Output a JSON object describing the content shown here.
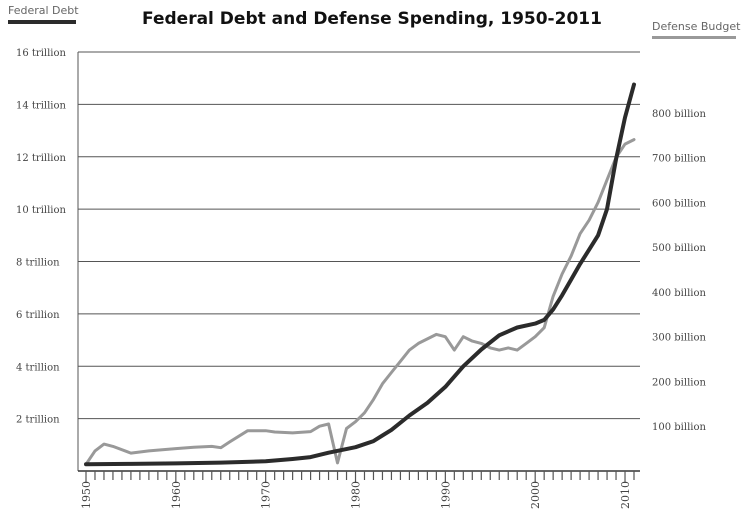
{
  "chart_data": {
    "type": "line",
    "title": "Federal Debt and Defense Spending, 1950-2011",
    "left_axis": {
      "label": "Federal Debt",
      "ylim": [
        0,
        16
      ],
      "ticks": [
        {
          "value": 2,
          "label": "2 trillion"
        },
        {
          "value": 4,
          "label": "4 trillion"
        },
        {
          "value": 6,
          "label": "6 trillion"
        },
        {
          "value": 8,
          "label": "8 trillion"
        },
        {
          "value": 10,
          "label": "10 trillion"
        },
        {
          "value": 12,
          "label": "12 trillion"
        },
        {
          "value": 14,
          "label": "14 trillion"
        },
        {
          "value": 16,
          "label": "16 trillion"
        }
      ]
    },
    "right_axis": {
      "label": "Defense Budget",
      "ylim": [
        0,
        900
      ],
      "ticks": [
        {
          "value": 100,
          "label": "100 billion"
        },
        {
          "value": 200,
          "label": "200 billion"
        },
        {
          "value": 300,
          "label": "300 billion"
        },
        {
          "value": 400,
          "label": "400 billion"
        },
        {
          "value": 500,
          "label": "500 billion"
        },
        {
          "value": 600,
          "label": "600 billion"
        },
        {
          "value": 700,
          "label": "700 billion"
        },
        {
          "value": 800,
          "label": "800 billion"
        }
      ]
    },
    "x_axis": {
      "range": [
        1950,
        2011
      ],
      "tick_labels": [
        "1950",
        "1960",
        "1970",
        "1980",
        "1990",
        "2000",
        "2010"
      ]
    },
    "grid": true,
    "series": [
      {
        "name": "Federal Debt",
        "axis": "left",
        "color": "#2b2b2b",
        "x": [
          1950,
          1955,
          1960,
          1965,
          1970,
          1973,
          1975,
          1977,
          1980,
          1982,
          1984,
          1986,
          1988,
          1990,
          1992,
          1994,
          1996,
          1998,
          2000,
          2001,
          2002,
          2003,
          2004,
          2005,
          2006,
          2007,
          2008,
          2009,
          2010,
          2011
        ],
        "values": [
          0.26,
          0.27,
          0.29,
          0.32,
          0.37,
          0.46,
          0.53,
          0.7,
          0.91,
          1.14,
          1.57,
          2.12,
          2.6,
          3.21,
          4.0,
          4.64,
          5.18,
          5.48,
          5.63,
          5.77,
          6.17,
          6.71,
          7.31,
          7.91,
          8.45,
          9.0,
          10.0,
          11.9,
          13.5,
          14.76
        ]
      },
      {
        "name": "Defense Budget",
        "axis": "right",
        "color": "#999999",
        "x": [
          1950,
          1951,
          1952,
          1953,
          1955,
          1957,
          1960,
          1962,
          1964,
          1965,
          1966,
          1968,
          1970,
          1971,
          1973,
          1975,
          1976,
          1977,
          1978,
          1979,
          1980,
          1981,
          1982,
          1983,
          1984,
          1985,
          1986,
          1987,
          1988,
          1989,
          1990,
          1991,
          1992,
          1993,
          1994,
          1995,
          1996,
          1997,
          1998,
          1999,
          2000,
          2001,
          2002,
          2003,
          2004,
          2005,
          2006,
          2007,
          2008,
          2009,
          2010,
          2011
        ],
        "values": [
          15,
          45,
          60,
          55,
          40,
          45,
          50,
          53,
          55,
          52,
          65,
          90,
          90,
          87,
          85,
          88,
          100,
          105,
          18,
          95,
          110,
          130,
          160,
          195,
          220,
          245,
          270,
          285,
          295,
          305,
          300,
          270,
          300,
          290,
          285,
          275,
          270,
          275,
          270,
          285,
          300,
          320,
          390,
          440,
          480,
          530,
          560,
          600,
          650,
          700,
          730,
          740
        ]
      }
    ]
  }
}
